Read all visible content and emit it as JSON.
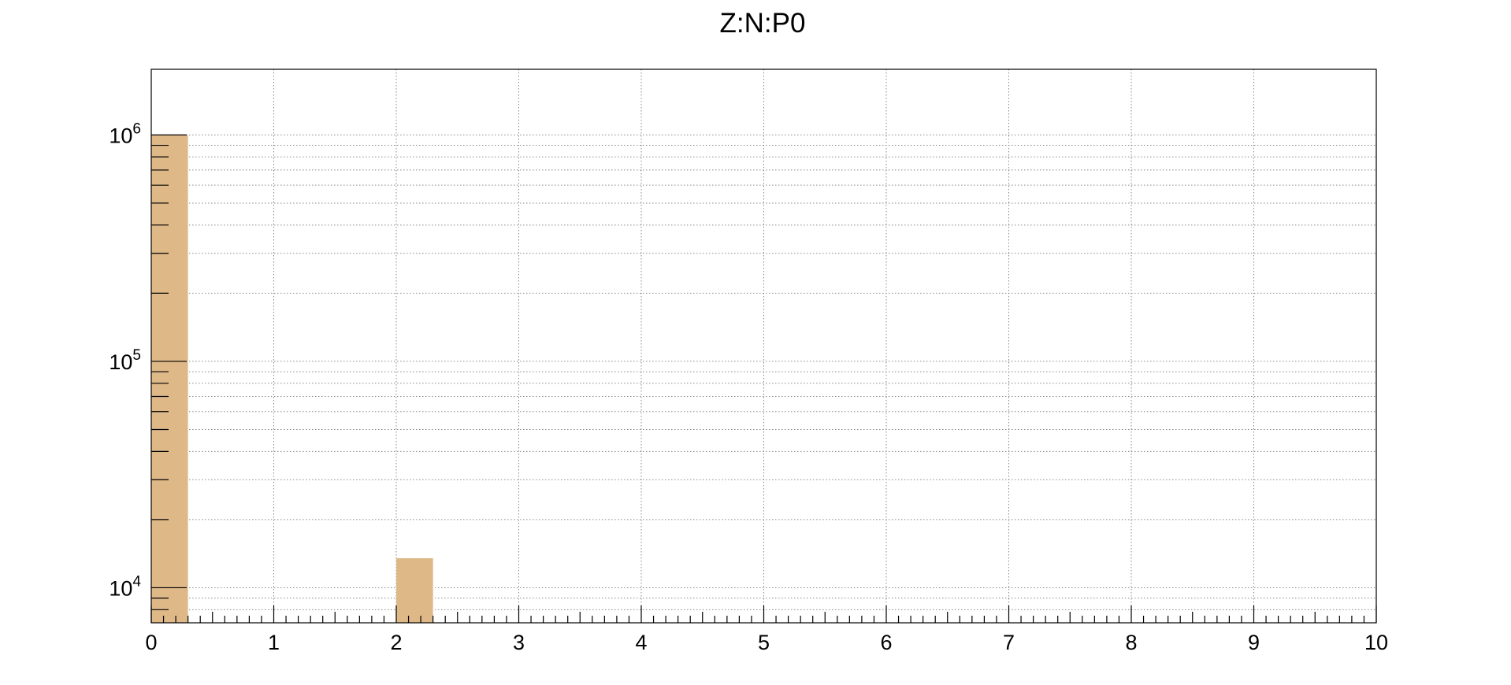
{
  "chart_data": {
    "type": "bar",
    "title": "Z:N:P0",
    "xlabel": "",
    "ylabel": "",
    "xlim": [
      0,
      10
    ],
    "ylim": [
      7000,
      1950000
    ],
    "y_scale": "log",
    "grid": true,
    "bin_width": 0.3,
    "x_tick_labels": [
      "0",
      "1",
      "2",
      "3",
      "4",
      "5",
      "6",
      "7",
      "8",
      "9",
      "10"
    ],
    "y_tick_labels": [
      {
        "value": 10000,
        "base": "10",
        "exp": "4"
      },
      {
        "value": 100000,
        "base": "10",
        "exp": "5"
      },
      {
        "value": 1000000,
        "base": "10",
        "exp": "6"
      }
    ],
    "bars": [
      {
        "x_low": 0,
        "value": 1000000
      },
      {
        "x_low": 2,
        "value": 13500
      }
    ],
    "bar_color": "#deb887"
  }
}
